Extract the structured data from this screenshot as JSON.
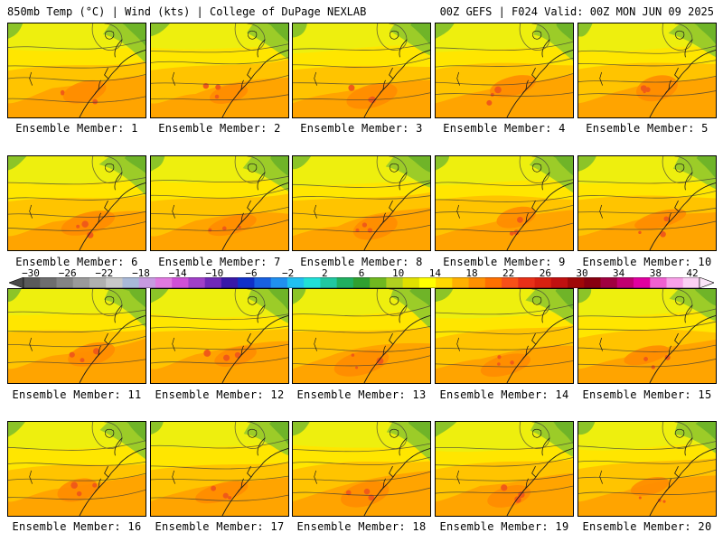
{
  "header": {
    "left_title": "850mb Temp (°C) | Wind (kts) | College of DuPage NEXLAB",
    "right_title": "00Z GEFS | F024 Valid: 00Z MON JUN 09 2025"
  },
  "members": [
    {
      "label": "Ensemble Member: 1"
    },
    {
      "label": "Ensemble Member: 2"
    },
    {
      "label": "Ensemble Member: 3"
    },
    {
      "label": "Ensemble Member: 4"
    },
    {
      "label": "Ensemble Member: 5"
    },
    {
      "label": "Ensemble Member: 6"
    },
    {
      "label": "Ensemble Member: 7"
    },
    {
      "label": "Ensemble Member: 8"
    },
    {
      "label": "Ensemble Member: 9"
    },
    {
      "label": "Ensemble Member: 10"
    },
    {
      "label": "Ensemble Member: 11"
    },
    {
      "label": "Ensemble Member: 12"
    },
    {
      "label": "Ensemble Member: 13"
    },
    {
      "label": "Ensemble Member: 14"
    },
    {
      "label": "Ensemble Member: 15"
    },
    {
      "label": "Ensemble Member: 16"
    },
    {
      "label": "Ensemble Member: 17"
    },
    {
      "label": "Ensemble Member: 18"
    },
    {
      "label": "Ensemble Member: 19"
    },
    {
      "label": "Ensemble Member: 20"
    }
  ],
  "colorbar": {
    "tick_labels": [
      "−30",
      "−26",
      "−22",
      "−18",
      "−14",
      "−10",
      "−6",
      "−2",
      "2",
      "6",
      "10",
      "14",
      "18",
      "22",
      "26",
      "30",
      "34",
      "38",
      "42"
    ],
    "colors": [
      "#5a5a5a",
      "#6e6e6e",
      "#848484",
      "#9a9a9a",
      "#b0b0b0",
      "#c8c8c8",
      "#a9b9d8",
      "#c79ae0",
      "#e07ae0",
      "#d050d8",
      "#a040c8",
      "#7028b8",
      "#3818a8",
      "#1030c8",
      "#1860e0",
      "#2090f0",
      "#20c0f0",
      "#20e0d8",
      "#20c8a0",
      "#20b060",
      "#30a030",
      "#70b820",
      "#b0d020",
      "#e0e000",
      "#ffff00",
      "#ffd800",
      "#ffb000",
      "#ff9000",
      "#ff7000",
      "#f85018",
      "#e83018",
      "#d82010",
      "#c01010",
      "#a00808",
      "#880010",
      "#a00040",
      "#c00070",
      "#e000a0",
      "#f060d0",
      "#f8a0e8",
      "#fcd0f4"
    ]
  }
}
